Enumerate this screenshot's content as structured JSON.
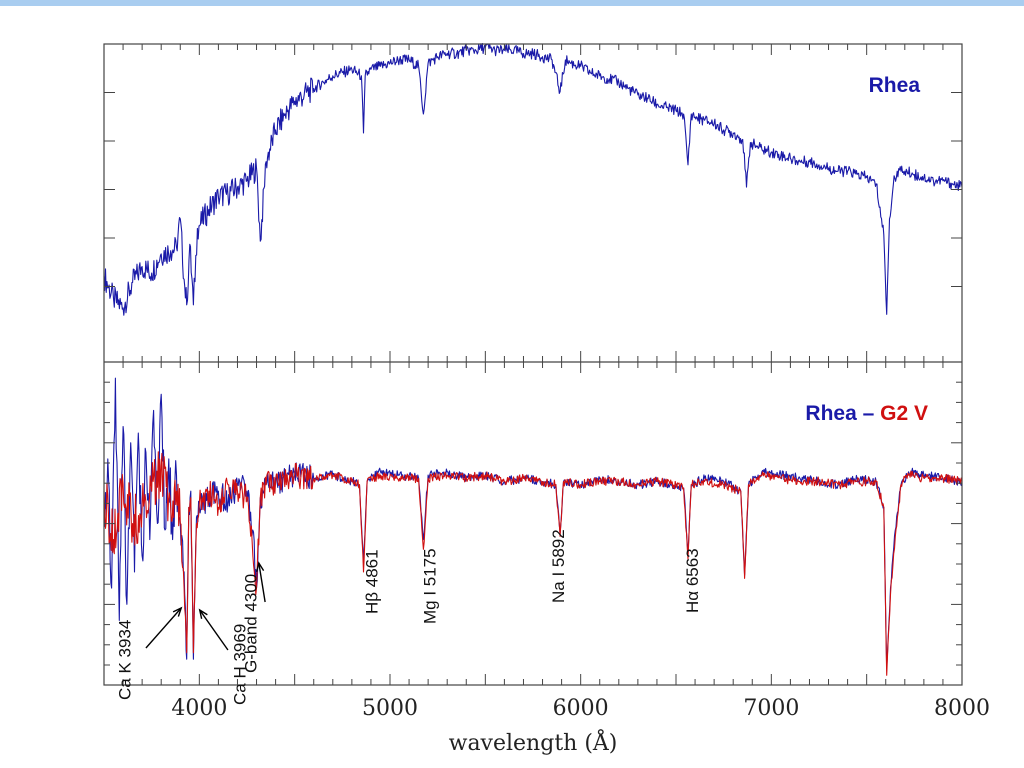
{
  "colors": {
    "topbar": "#a9cdf0",
    "blue": "#1a1aa8",
    "red": "#d01010",
    "frame": "#444444"
  },
  "chart_data": {
    "type": "line",
    "xlabel": "wavelength (Å)",
    "xlim": [
      3500,
      8000
    ],
    "x_ticks": [
      4000,
      5000,
      6000,
      7000,
      8000
    ],
    "panels": [
      {
        "id": "top",
        "title_parts": [
          {
            "text": "Rhea",
            "color": "#1a1aa8"
          }
        ],
        "series": [
          {
            "color": "#1a1aa8",
            "x": [
              3500,
              3550,
              3600,
              3650,
              3700,
              3750,
              3800,
              3850,
              3880,
              3900,
              3920,
              3934,
              3950,
              3969,
              3990,
              4050,
              4100,
              4150,
              4200,
              4250,
              4300,
              4320,
              4350,
              4400,
              4450,
              4500,
              4550,
              4600,
              4650,
              4700,
              4750,
              4800,
              4850,
              4861,
              4870,
              4900,
              4950,
              5000,
              5050,
              5100,
              5150,
              5175,
              5200,
              5250,
              5300,
              5350,
              5400,
              5450,
              5500,
              5550,
              5600,
              5650,
              5700,
              5750,
              5800,
              5850,
              5892,
              5920,
              5950,
              6000,
              6050,
              6100,
              6150,
              6200,
              6250,
              6300,
              6350,
              6400,
              6450,
              6500,
              6540,
              6563,
              6580,
              6600,
              6650,
              6700,
              6750,
              6800,
              6850,
              6870,
              6890,
              6920,
              6950,
              7000,
              7050,
              7100,
              7150,
              7200,
              7250,
              7300,
              7350,
              7400,
              7450,
              7500,
              7550,
              7590,
              7605,
              7620,
              7640,
              7660,
              7680,
              7700,
              7750,
              7800,
              7850,
              7900,
              7950,
              8000
            ],
            "y": [
              0.27,
              0.2,
              0.17,
              0.25,
              0.3,
              0.28,
              0.34,
              0.35,
              0.36,
              0.45,
              0.26,
              0.18,
              0.37,
              0.18,
              0.42,
              0.48,
              0.52,
              0.53,
              0.55,
              0.57,
              0.61,
              0.38,
              0.63,
              0.73,
              0.78,
              0.82,
              0.84,
              0.86,
              0.88,
              0.9,
              0.91,
              0.92,
              0.9,
              0.72,
              0.9,
              0.92,
              0.93,
              0.94,
              0.95,
              0.95,
              0.93,
              0.78,
              0.94,
              0.96,
              0.97,
              0.97,
              0.98,
              0.98,
              0.99,
              0.98,
              0.98,
              0.98,
              0.97,
              0.97,
              0.96,
              0.95,
              0.85,
              0.95,
              0.94,
              0.93,
              0.91,
              0.9,
              0.89,
              0.88,
              0.86,
              0.84,
              0.83,
              0.81,
              0.8,
              0.79,
              0.78,
              0.62,
              0.78,
              0.77,
              0.76,
              0.75,
              0.73,
              0.72,
              0.7,
              0.55,
              0.69,
              0.68,
              0.67,
              0.66,
              0.65,
              0.64,
              0.63,
              0.63,
              0.62,
              0.61,
              0.6,
              0.6,
              0.59,
              0.58,
              0.56,
              0.4,
              0.15,
              0.45,
              0.56,
              0.6,
              0.6,
              0.6,
              0.59,
              0.58,
              0.57,
              0.57,
              0.56,
              0.55
            ]
          }
        ]
      },
      {
        "id": "bottom",
        "title_parts": [
          {
            "text": "Rhea",
            "color": "#1a1aa8"
          },
          {
            "text": " – ",
            "color": "#1a1aa8"
          },
          {
            "text": "G2 V",
            "color": "#d01010"
          }
        ],
        "series": [
          {
            "color": "#1a1aa8",
            "x": [
              3500,
              3520,
              3540,
              3560,
              3580,
              3600,
              3620,
              3640,
              3660,
              3680,
              3700,
              3720,
              3740,
              3760,
              3780,
              3800,
              3820,
              3840,
              3860,
              3880,
              3900,
              3920,
              3934,
              3945,
              3955,
              3969,
              3985,
              4000,
              4050,
              4100,
              4150,
              4200,
              4250,
              4280,
              4300,
              4320,
              4350,
              4400,
              4450,
              4500,
              4600,
              4700,
              4800,
              4840,
              4861,
              4880,
              4950,
              5050,
              5150,
              5175,
              5200,
              5300,
              5400,
              5500,
              5600,
              5700,
              5800,
              5870,
              5892,
              5910,
              6000,
              6100,
              6200,
              6300,
              6400,
              6500,
              6540,
              6563,
              6580,
              6650,
              6750,
              6840,
              6860,
              6880,
              6950,
              7050,
              7150,
              7250,
              7350,
              7450,
              7550,
              7590,
              7605,
              7625,
              7650,
              7680,
              7720,
              7800,
              7900,
              8000
            ],
            "y": [
              0.5,
              0.7,
              0.3,
              0.95,
              0.2,
              0.8,
              0.25,
              0.75,
              0.35,
              0.78,
              0.4,
              0.72,
              0.45,
              0.85,
              0.5,
              0.9,
              0.48,
              0.7,
              0.45,
              0.65,
              0.5,
              0.35,
              0.08,
              0.55,
              0.6,
              0.08,
              0.52,
              0.55,
              0.58,
              0.6,
              0.56,
              0.62,
              0.6,
              0.48,
              0.3,
              0.58,
              0.62,
              0.64,
              0.63,
              0.66,
              0.64,
              0.65,
              0.63,
              0.62,
              0.38,
              0.63,
              0.66,
              0.65,
              0.64,
              0.45,
              0.65,
              0.66,
              0.64,
              0.65,
              0.63,
              0.64,
              0.63,
              0.62,
              0.47,
              0.63,
              0.62,
              0.64,
              0.63,
              0.62,
              0.63,
              0.62,
              0.61,
              0.41,
              0.62,
              0.64,
              0.63,
              0.6,
              0.34,
              0.62,
              0.66,
              0.65,
              0.64,
              0.63,
              0.62,
              0.64,
              0.63,
              0.55,
              0.05,
              0.3,
              0.48,
              0.62,
              0.66,
              0.65,
              0.64,
              0.63
            ]
          },
          {
            "color": "#d01010",
            "x": [
              3500,
              3550,
              3600,
              3650,
              3700,
              3750,
              3800,
              3850,
              3880,
              3900,
              3920,
              3934,
              3945,
              3955,
              3969,
              3985,
              4000,
              4050,
              4100,
              4150,
              4200,
              4250,
              4300,
              4320,
              4350,
              4400,
              4500,
              4600,
              4700,
              4800,
              4840,
              4861,
              4880,
              4950,
              5050,
              5150,
              5175,
              5200,
              5300,
              5400,
              5500,
              5600,
              5700,
              5800,
              5870,
              5892,
              5910,
              6000,
              6100,
              6200,
              6300,
              6400,
              6500,
              6540,
              6563,
              6580,
              6650,
              6750,
              6840,
              6860,
              6880,
              6950,
              7050,
              7150,
              7250,
              7350,
              7450,
              7550,
              7590,
              7605,
              7625,
              7650,
              7680,
              7720,
              7800,
              7900,
              8000
            ],
            "y": [
              0.6,
              0.45,
              0.62,
              0.5,
              0.55,
              0.6,
              0.68,
              0.55,
              0.6,
              0.5,
              0.3,
              0.1,
              0.55,
              0.58,
              0.1,
              0.5,
              0.56,
              0.6,
              0.55,
              0.62,
              0.6,
              0.58,
              0.3,
              0.58,
              0.62,
              0.63,
              0.65,
              0.64,
              0.65,
              0.63,
              0.62,
              0.35,
              0.63,
              0.65,
              0.64,
              0.64,
              0.42,
              0.64,
              0.65,
              0.64,
              0.65,
              0.63,
              0.64,
              0.63,
              0.62,
              0.46,
              0.63,
              0.62,
              0.63,
              0.63,
              0.62,
              0.63,
              0.62,
              0.61,
              0.39,
              0.62,
              0.63,
              0.62,
              0.6,
              0.33,
              0.62,
              0.65,
              0.64,
              0.63,
              0.63,
              0.62,
              0.63,
              0.63,
              0.55,
              0.03,
              0.28,
              0.46,
              0.62,
              0.65,
              0.64,
              0.64,
              0.63
            ]
          }
        ]
      }
    ],
    "annotations": [
      {
        "text": "Ca K 3934",
        "x": 3934
      },
      {
        "text": "Ca H 3969",
        "x": 3969
      },
      {
        "text": "G-band 4300",
        "x": 4300
      },
      {
        "text": "Hβ 4861",
        "x": 4861
      },
      {
        "text": "Mg I 5175",
        "x": 5175
      },
      {
        "text": "Na I 5892",
        "x": 5892
      },
      {
        "text": "Hα 6563",
        "x": 6563
      }
    ]
  }
}
